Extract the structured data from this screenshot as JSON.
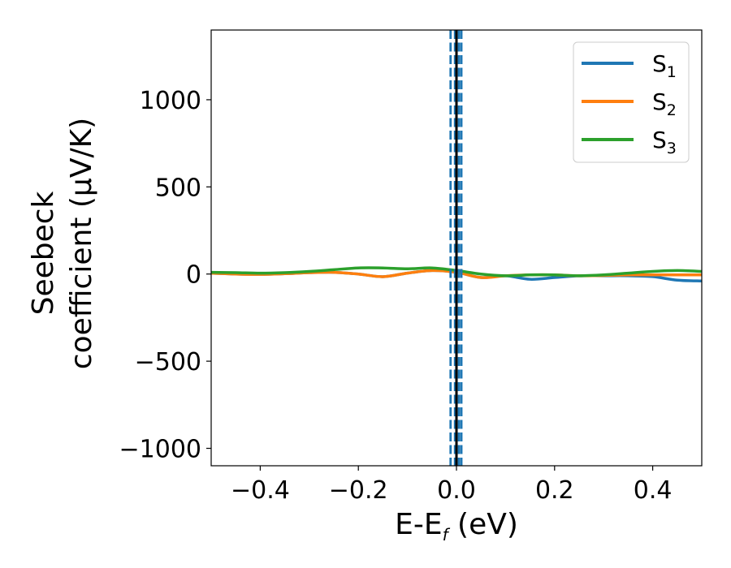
{
  "chart_data": {
    "type": "line",
    "title": "",
    "xlabel": {
      "main": "E-E",
      "sub": "f",
      "unit": " (eV)"
    },
    "ylabel": {
      "line1": "Seebeck",
      "line2": "coefficient  (μV/K)"
    },
    "xlim": [
      -0.5,
      0.5
    ],
    "ylim": [
      -1100,
      1400
    ],
    "x_ticks": [
      {
        "value": -0.4,
        "label": "−0.4"
      },
      {
        "value": -0.2,
        "label": "−0.2"
      },
      {
        "value": 0.0,
        "label": "0.0"
      },
      {
        "value": 0.2,
        "label": "0.2"
      },
      {
        "value": 0.4,
        "label": "0.4"
      }
    ],
    "y_ticks": [
      {
        "value": 1000,
        "label": "1000"
      },
      {
        "value": 500,
        "label": "500"
      },
      {
        "value": 0,
        "label": "0"
      },
      {
        "value": -500,
        "label": "−500"
      },
      {
        "value": -1000,
        "label": "−1000"
      }
    ],
    "grid": false,
    "legend": {
      "placement": "top-right",
      "entries": [
        {
          "main": "S",
          "sub": "1"
        },
        {
          "main": "S",
          "sub": "2"
        },
        {
          "main": "S",
          "sub": "3"
        }
      ]
    },
    "series": [
      {
        "id": "s1",
        "color": "#1f77b4",
        "x": [
          -0.5,
          -0.45,
          -0.4,
          -0.35,
          -0.3,
          -0.25,
          -0.2,
          -0.15,
          -0.1,
          -0.05,
          0.0,
          0.05,
          0.1,
          0.15,
          0.2,
          0.25,
          0.3,
          0.35,
          0.4,
          0.45,
          0.5
        ],
        "y": [
          5,
          0,
          -2,
          2,
          8,
          10,
          0,
          -15,
          5,
          20,
          10,
          -20,
          -10,
          -30,
          -20,
          -10,
          -10,
          -10,
          -15,
          -35,
          -40
        ]
      },
      {
        "id": "s2",
        "color": "#ff7f0e",
        "x": [
          -0.5,
          -0.45,
          -0.4,
          -0.35,
          -0.3,
          -0.25,
          -0.2,
          -0.15,
          -0.1,
          -0.05,
          0.0,
          0.05,
          0.1,
          0.15,
          0.2,
          0.25,
          0.3,
          0.35,
          0.4,
          0.45,
          0.5
        ],
        "y": [
          5,
          0,
          -2,
          2,
          8,
          10,
          0,
          -15,
          5,
          20,
          10,
          -20,
          -10,
          -5,
          -5,
          -10,
          -8,
          -5,
          -5,
          -5,
          -5
        ]
      },
      {
        "id": "s3",
        "color": "#2ca02c",
        "x": [
          -0.5,
          -0.45,
          -0.4,
          -0.35,
          -0.3,
          -0.25,
          -0.2,
          -0.15,
          -0.1,
          -0.05,
          0.0,
          0.05,
          0.1,
          0.15,
          0.2,
          0.25,
          0.3,
          0.35,
          0.4,
          0.45,
          0.5
        ],
        "y": [
          10,
          8,
          5,
          8,
          15,
          25,
          35,
          35,
          30,
          35,
          20,
          0,
          -10,
          -5,
          -5,
          -10,
          -5,
          5,
          15,
          20,
          15
        ]
      }
    ],
    "vertical_lines": [
      {
        "x": 0.0,
        "color": "#000000",
        "style": "solid"
      },
      {
        "x": -0.012,
        "color": "#1f77b4",
        "style": "dashed"
      },
      {
        "x": 0.005,
        "color": "#1f77b4",
        "style": "dashed"
      },
      {
        "x": -0.003,
        "color": "#1f77b4",
        "style": "dashed"
      },
      {
        "x": 0.01,
        "color": "#1f77b4",
        "style": "dashed"
      }
    ]
  }
}
